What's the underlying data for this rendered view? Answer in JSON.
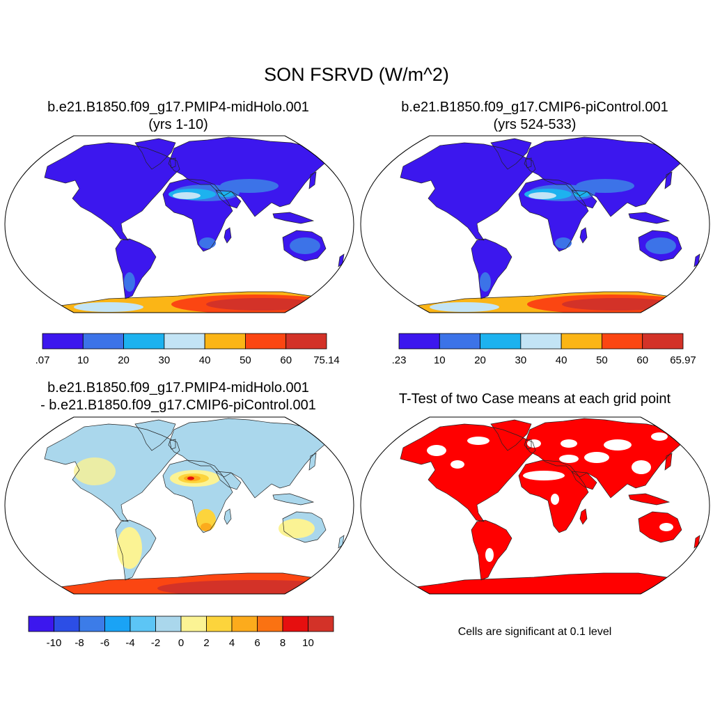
{
  "figure": {
    "title": "SON FSRVD (W/m^2)"
  },
  "panels": [
    {
      "title_line1": "b.e21.B1850.f09_g17.PMIP4-midHolo.001",
      "title_line2": "(yrs 1-10)",
      "colorbar": {
        "colors": [
          "#3c17ee",
          "#3c73e8",
          "#1db2ef",
          "#c3e4f5",
          "#fbb516",
          "#fb4612",
          "#d33228"
        ],
        "labels": [
          ".07",
          "10",
          "20",
          "30",
          "40",
          "50",
          "60",
          "75.14"
        ]
      }
    },
    {
      "title_line1": "b.e21.B1850.f09_g17.CMIP6-piControl.001",
      "title_line2": "(yrs 524-533)",
      "colorbar": {
        "colors": [
          "#3c17ee",
          "#3c73e8",
          "#1db2ef",
          "#c3e4f5",
          "#fbb516",
          "#fb4612",
          "#d33228"
        ],
        "labels": [
          ".23",
          "10",
          "20",
          "30",
          "40",
          "50",
          "60",
          "65.97"
        ]
      }
    },
    {
      "title_line1": "b.e21.B1850.f09_g17.PMIP4-midHolo.001",
      "title_line2": "- b.e21.B1850.f09_g17.CMIP6-piControl.001",
      "colorbar": {
        "colors": [
          "#3c17ee",
          "#2c4ee6",
          "#3c7ce8",
          "#1aa3f5",
          "#5cc5f5",
          "#aad7ec",
          "#fbf394",
          "#fcd43c",
          "#fcab1c",
          "#fa7212",
          "#e60f0f",
          "#d33228"
        ],
        "labels": [
          "-10",
          "-8",
          "-6",
          "-4",
          "-2",
          "0",
          "2",
          "4",
          "6",
          "8",
          "10"
        ]
      }
    },
    {
      "title_line1": "T-Test of two Case means at each grid point",
      "note": "Cells are significant at 0.1 level",
      "significant_color": "#ff0000"
    }
  ],
  "map_colors": {
    "ocean": "#ffffff",
    "coast": "#222222",
    "land_low": "#3c17ee",
    "land_mid": "#3c73e8",
    "desert_a": "#1db2ef",
    "desert_b": "#c3e4f5",
    "antarctic_yellow": "#fbb516",
    "antarctic_orange": "#fb4612",
    "antarctic_red": "#d33228",
    "diff_land": "#aad7ec",
    "diff_yellow": "#fbf394",
    "diff_yellow2": "#fcd43c",
    "diff_orange": "#fcab1c",
    "diff_red": "#e60f0f"
  }
}
